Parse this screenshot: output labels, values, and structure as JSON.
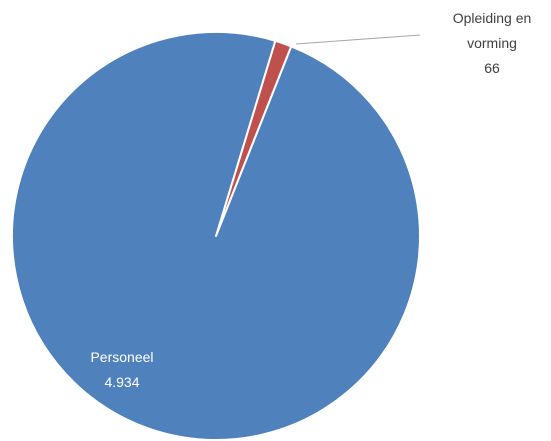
{
  "chart_data": {
    "type": "pie",
    "slices": [
      {
        "label": "Personeel",
        "value_label": "4.934",
        "value": 4934,
        "color": "#4F81BD",
        "label_color": "#ffffff"
      },
      {
        "label": "Opleiding en vorming",
        "label_lines": [
          "Opleiding en",
          "vorming"
        ],
        "value_label": "66",
        "value": 66,
        "color": "#C0504D",
        "label_color": "#404040"
      }
    ],
    "background": "#ffffff",
    "separator_color": "#ffffff",
    "leader_line_color": "#a6a6a6"
  }
}
